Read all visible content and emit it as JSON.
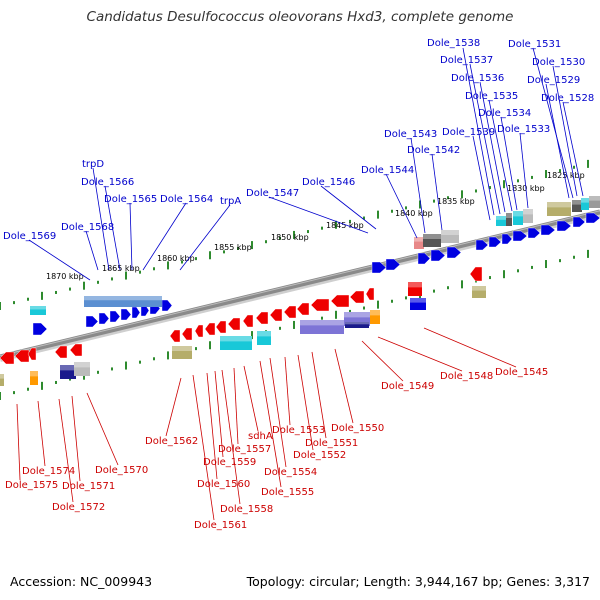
{
  "title": "Candidatus Desulfococcus oleovorans Hxd3, complete genome",
  "accession": "Accession: NC_009943",
  "summary": "Topology: circular; Length: 3,944,167 bp; Genes: 3,317",
  "colors": {
    "forward_label": "#0000cc",
    "reverse_label": "#cc0000",
    "backbone": "#8a8a8a",
    "tick": "#2e8b2e"
  },
  "scale_labels": [
    "1825 kbp",
    "1830 kbp",
    "1835 kbp",
    "1840 kbp",
    "1845 kbp",
    "1850 kbp",
    "1855 kbp",
    "1860 kbp",
    "1865 kbp",
    "1870 kbp"
  ],
  "forward_genes": [
    "Dole_1531",
    "Dole_1530",
    "Dole_1529",
    "Dole_1528",
    "Dole_1538",
    "Dole_1537",
    "Dole_1536",
    "Dole_1535",
    "Dole_1534",
    "Dole_1533",
    "Dole_1539",
    "Dole_1543",
    "Dole_1542",
    "Dole_1544",
    "Dole_1546",
    "Dole_1547",
    "trpA",
    "Dole_1564",
    "Dole_1565",
    "Dole_1566",
    "trpD",
    "Dole_1568",
    "Dole_1569"
  ],
  "reverse_genes": [
    "Dole_1545",
    "Dole_1548",
    "Dole_1549",
    "Dole_1550",
    "Dole_1551",
    "Dole_1552",
    "Dole_1553",
    "Dole_1554",
    "Dole_1555",
    "sdhA",
    "Dole_1557",
    "Dole_1558",
    "Dole_1559",
    "Dole_1560",
    "Dole_1561",
    "Dole_1562",
    "Dole_1570",
    "Dole_1571",
    "Dole_1572",
    "Dole_1574",
    "Dole_1575"
  ]
}
